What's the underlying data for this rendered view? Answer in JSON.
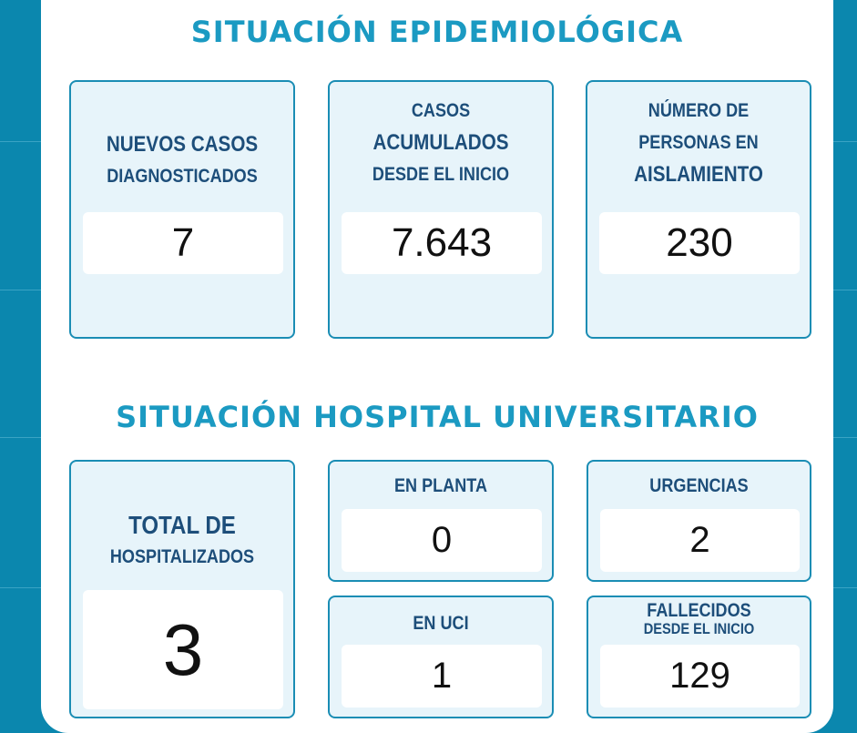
{
  "sections": [
    {
      "title": "SITUACIÓN EPIDEMIOLÓGICA",
      "cards": [
        {
          "label": [
            "NUEVOS CASOS",
            "DIAGNOSTICADOS"
          ],
          "value": "7"
        },
        {
          "label": [
            "CASOS",
            "ACUMULADOS",
            "DESDE EL INICIO"
          ],
          "value": "7.643"
        },
        {
          "label": [
            "NÚMERO DE",
            "PERSONAS EN",
            "AISLAMIENTO"
          ],
          "value": "230"
        }
      ]
    },
    {
      "title": "SITUACIÓN HOSPITAL UNIVERSITARIO",
      "cards": [
        {
          "label": [
            "TOTAL DE",
            "HOSPITALIZADOS"
          ],
          "value": "3"
        },
        {
          "label": [
            "EN PLANTA"
          ],
          "value": "0"
        },
        {
          "label": [
            "URGENCIAS"
          ],
          "value": "2"
        },
        {
          "label": [
            "EN UCI"
          ],
          "value": "1"
        },
        {
          "label": [
            "FALLECIDOS",
            "DESDE EL INICIO"
          ],
          "value": "129"
        }
      ]
    }
  ]
}
